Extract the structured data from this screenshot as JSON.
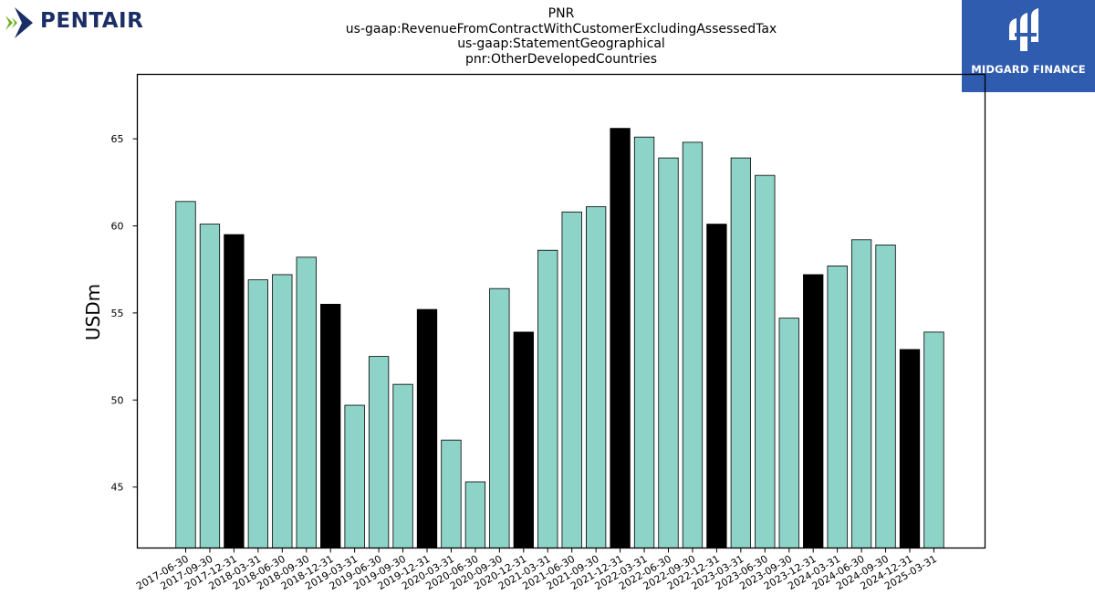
{
  "brand": {
    "left_logo_text": "PENTAIR",
    "right_logo_text": "MIDGARD FINANCE",
    "left_logo_colors": [
      "#6ab023",
      "#1b2f66"
    ],
    "right_logo_bg": "#2f5cae"
  },
  "titles": {
    "line1": "PNR",
    "line2": "us-gaap:RevenueFromContractWithCustomerExcludingAssessedTax",
    "line3": "us-gaap:StatementGeographical",
    "line4": "pnr:OtherDevelopedCountries"
  },
  "chart_data": {
    "type": "bar",
    "ylabel": "USDm",
    "xlabel": "",
    "ylim": [
      41.5,
      68.7
    ],
    "yticks": [
      45,
      50,
      55,
      60,
      65
    ],
    "grid": false,
    "colors": {
      "quarter": "#8dd3c7",
      "year_end": "#000000",
      "edge": "#000000"
    },
    "categories": [
      "2017-06-30",
      "2017-09-30",
      "2017-12-31",
      "2018-03-31",
      "2018-06-30",
      "2018-09-30",
      "2018-12-31",
      "2019-03-31",
      "2019-06-30",
      "2019-09-30",
      "2019-12-31",
      "2020-03-31",
      "2020-06-30",
      "2020-09-30",
      "2020-12-31",
      "2021-03-31",
      "2021-06-30",
      "2021-09-30",
      "2021-12-31",
      "2022-03-31",
      "2022-06-30",
      "2022-09-30",
      "2022-12-31",
      "2023-03-31",
      "2023-06-30",
      "2023-09-30",
      "2023-12-31",
      "2024-03-31",
      "2024-06-30",
      "2024-09-30",
      "2024-12-31",
      "2025-03-31"
    ],
    "values": [
      61.4,
      60.1,
      59.5,
      56.9,
      57.2,
      58.2,
      55.5,
      49.7,
      52.5,
      50.9,
      55.2,
      47.7,
      45.3,
      56.4,
      53.9,
      58.6,
      60.8,
      61.1,
      65.6,
      65.1,
      63.9,
      64.8,
      60.1,
      63.9,
      62.9,
      54.7,
      57.2,
      57.7,
      59.2,
      58.9,
      52.9,
      53.9
    ],
    "year_end_flags": [
      false,
      false,
      true,
      false,
      false,
      false,
      true,
      false,
      false,
      false,
      true,
      false,
      false,
      false,
      true,
      false,
      false,
      false,
      true,
      false,
      false,
      false,
      true,
      false,
      false,
      false,
      true,
      false,
      false,
      false,
      true,
      false
    ]
  }
}
